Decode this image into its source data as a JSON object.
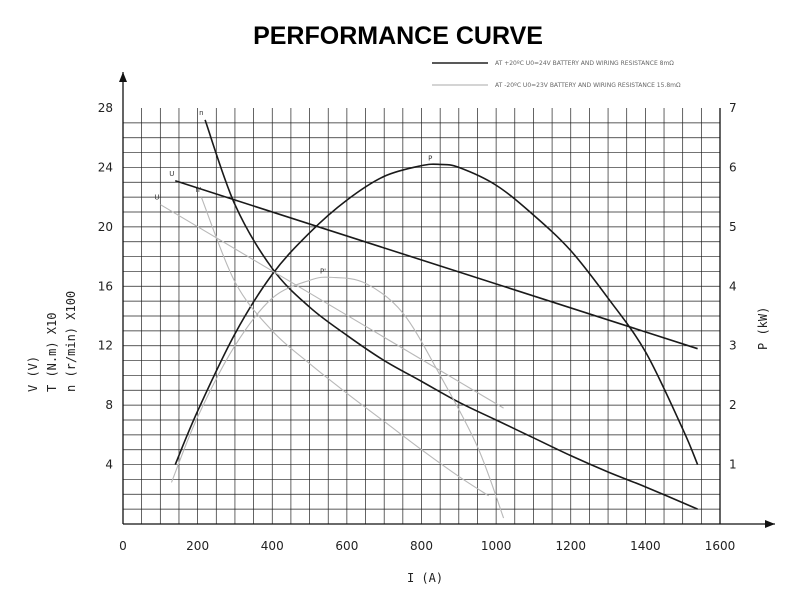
{
  "chart_data": {
    "type": "line",
    "title": "PERFORMANCE CURVE",
    "xlabel": "I (A)",
    "xlim": [
      0,
      1600
    ],
    "xticks": [
      "0",
      "200",
      "400",
      "600",
      "800",
      "1000",
      "1200",
      "1400",
      "1600"
    ],
    "ylabel_left": [
      "V (V)",
      "T (N.m) X10",
      "n (r/min) X100"
    ],
    "ylim_left": [
      0,
      28
    ],
    "yticks_left": [
      "4",
      "8",
      "12",
      "16",
      "20",
      "24",
      "28"
    ],
    "ylabel_right": "P (kW)",
    "ylim_right": [
      0,
      7
    ],
    "yticks_right": [
      "1",
      "2",
      "3",
      "4",
      "5",
      "6",
      "7"
    ],
    "grid": true,
    "legend": {
      "placement": "top-right",
      "entries": [
        {
          "text": "AT +20ºC U0=24V  BATTERY AND WIRING RESISTANCE 8mΩ",
          "style": "dark"
        },
        {
          "text": "AT -20ºC U0=23V  BATTERY AND WIRING RESISTANCE 15.8mΩ",
          "style": "light"
        }
      ]
    },
    "series": [
      {
        "name": "U",
        "style": "dark",
        "axis": "left",
        "x": [
          140,
          1540
        ],
        "y": [
          23.1,
          11.8
        ]
      },
      {
        "name": "n",
        "style": "dark",
        "axis": "left",
        "x": [
          220,
          300,
          400,
          500,
          600,
          700,
          800,
          900,
          1000,
          1100,
          1200,
          1300,
          1400,
          1540
        ],
        "y": [
          27.2,
          21.5,
          17.2,
          14.6,
          12.7,
          11.0,
          9.6,
          8.2,
          7.0,
          5.8,
          4.6,
          3.5,
          2.5,
          1.0
        ]
      },
      {
        "name": "P",
        "style": "dark",
        "axis": "right",
        "x": [
          140,
          200,
          300,
          400,
          500,
          600,
          700,
          800,
          850,
          900,
          1000,
          1100,
          1200,
          1300,
          1400,
          1500,
          1540
        ],
        "y": [
          1.0,
          1.9,
          3.2,
          4.2,
          4.9,
          5.45,
          5.85,
          6.03,
          6.05,
          6.0,
          5.7,
          5.2,
          4.6,
          3.8,
          2.9,
          1.6,
          1.0
        ]
      },
      {
        "name": "U'",
        "style": "light",
        "axis": "left",
        "x": [
          100,
          1020
        ],
        "y": [
          21.5,
          7.8
        ]
      },
      {
        "name": "n'",
        "style": "light",
        "axis": "left",
        "x": [
          210,
          300,
          400,
          500,
          600,
          700,
          800,
          900,
          980
        ],
        "y": [
          22.0,
          16.3,
          13.0,
          10.8,
          8.8,
          6.9,
          5.0,
          3.2,
          1.9
        ]
      },
      {
        "name": "P'",
        "style": "light",
        "axis": "right",
        "x": [
          130,
          200,
          300,
          400,
          500,
          560,
          650,
          750,
          850,
          950,
          1020
        ],
        "y": [
          0.7,
          1.8,
          3.0,
          3.8,
          4.1,
          4.15,
          4.05,
          3.55,
          2.5,
          1.3,
          0.1
        ]
      }
    ]
  }
}
